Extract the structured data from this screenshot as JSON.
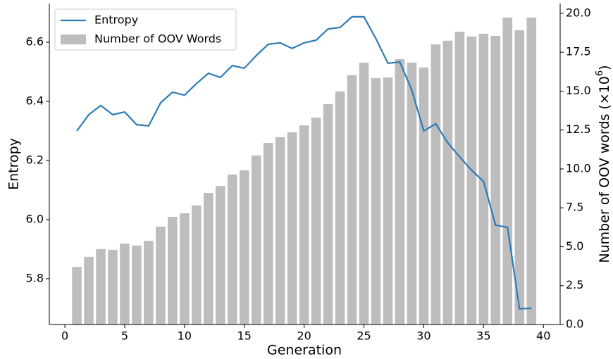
{
  "chart_data": {
    "type": "bar-line",
    "xlabel": "Generation",
    "ylabel": "Entropy",
    "y2label": [
      "Number of OOV words (×10",
      "6",
      ")"
    ],
    "x": [
      1,
      2,
      3,
      4,
      5,
      6,
      7,
      8,
      9,
      10,
      11,
      12,
      13,
      14,
      15,
      16,
      17,
      18,
      19,
      20,
      21,
      22,
      23,
      24,
      25,
      26,
      27,
      28,
      29,
      30,
      31,
      32,
      33,
      34,
      35,
      36,
      37,
      38,
      39
    ],
    "xlim": [
      -1.3,
      41.4
    ],
    "xticks": [
      0,
      5,
      10,
      15,
      20,
      25,
      30,
      35,
      40
    ],
    "ylim": [
      5.645,
      6.731
    ],
    "yticks": [
      5.8,
      {
        "value": 6,
        "label": "6.0"
      },
      6.2,
      6.4,
      6.6
    ],
    "y2lim": [
      0,
      20.63
    ],
    "y2ticks": [
      {
        "value": 0,
        "label": "0.0"
      },
      2.5,
      {
        "value": 5,
        "label": "5.0"
      },
      7.5,
      {
        "value": 10,
        "label": "10.0"
      },
      12.5,
      {
        "value": 15,
        "label": "15.0"
      },
      17.5,
      {
        "value": 20,
        "label": "20.0"
      }
    ],
    "legend": "upper left",
    "series": [
      {
        "name": "Entropy",
        "type": "line",
        "color": "#2e7bb4",
        "values": [
          6.3,
          6.355,
          6.386,
          6.355,
          6.364,
          6.321,
          6.317,
          6.395,
          6.431,
          6.421,
          6.46,
          6.495,
          6.481,
          6.521,
          6.512,
          6.555,
          6.593,
          6.598,
          6.579,
          6.598,
          6.607,
          6.645,
          6.65,
          6.686,
          6.686,
          6.612,
          6.529,
          6.533,
          6.438,
          6.3,
          6.324,
          6.26,
          6.212,
          6.167,
          6.129,
          5.981,
          5.974,
          5.698,
          5.7
        ]
      },
      {
        "name": "Number of OOV Words",
        "type": "bar",
        "axis": "y2",
        "color": "#bdbdbd",
        "values": [
          3.7,
          4.35,
          4.85,
          4.8,
          5.2,
          5.07,
          5.38,
          6.29,
          6.92,
          7.15,
          7.65,
          8.46,
          8.91,
          9.64,
          9.91,
          10.86,
          11.67,
          12.04,
          12.35,
          12.8,
          13.3,
          14.16,
          14.98,
          16.02,
          16.83,
          15.84,
          15.88,
          17.06,
          16.83,
          16.52,
          18.0,
          18.24,
          18.82,
          18.51,
          18.69,
          18.55,
          19.73,
          18.91,
          19.73
        ]
      }
    ]
  }
}
